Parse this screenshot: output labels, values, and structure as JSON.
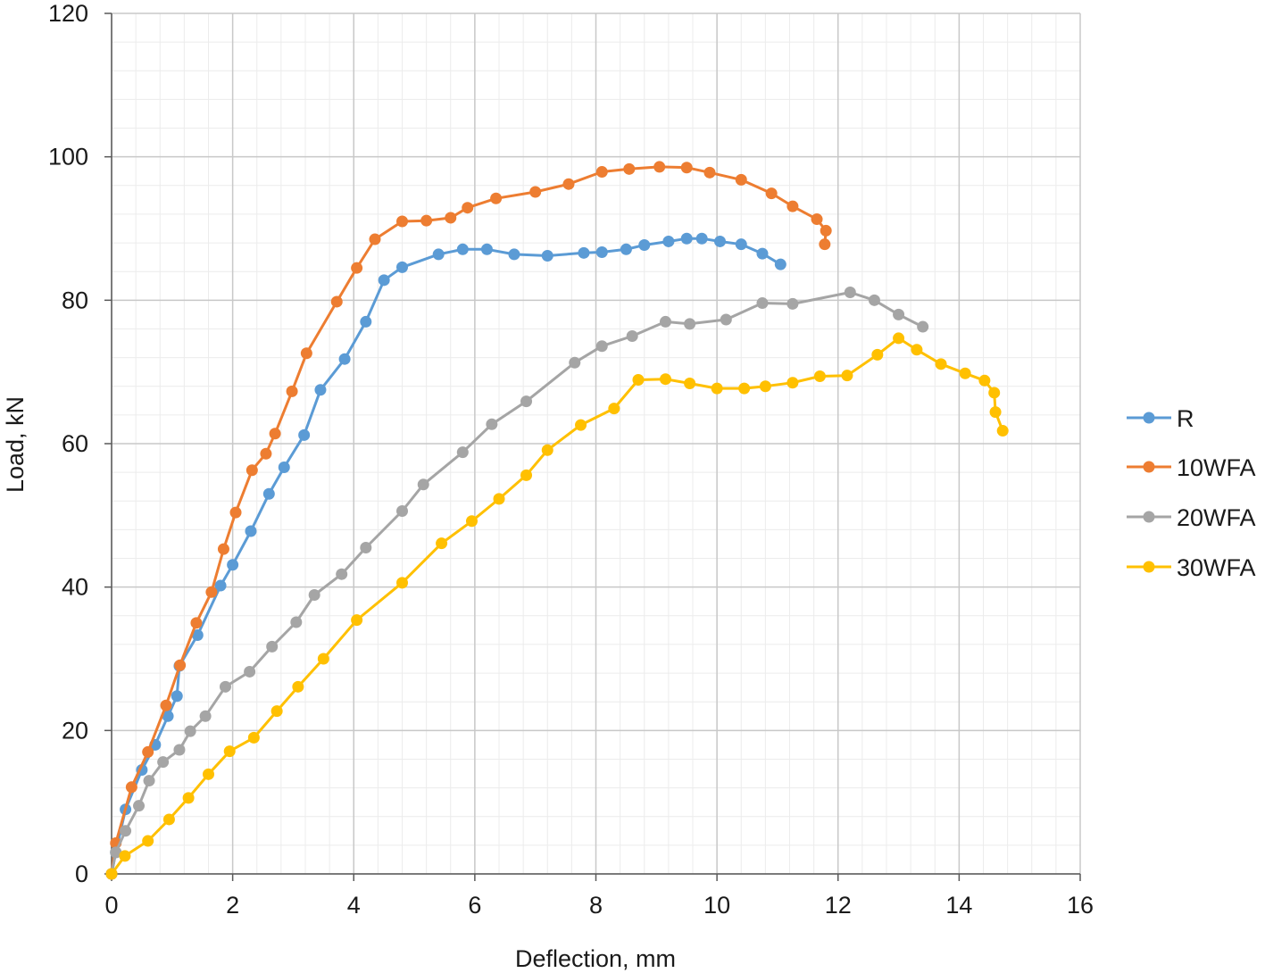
{
  "chart_data": {
    "type": "line",
    "xlabel": "Deflection, mm",
    "ylabel": "Load, kN",
    "xlim": [
      0,
      16
    ],
    "ylim": [
      0,
      120
    ],
    "x_ticks": [
      0,
      2,
      4,
      6,
      8,
      10,
      12,
      14,
      16
    ],
    "y_ticks": [
      0,
      20,
      40,
      60,
      80,
      100,
      120
    ],
    "grid": true,
    "legend_position": "right",
    "series": [
      {
        "name": "R",
        "color": "#5B9BD5",
        "x": [
          0,
          0.07,
          0.23,
          0.5,
          0.72,
          0.93,
          1.08,
          1.12,
          1.42,
          1.8,
          2.0,
          2.3,
          2.6,
          2.85,
          3.18,
          3.45,
          3.85,
          4.2,
          4.5,
          4.8,
          5.4,
          5.8,
          6.2,
          6.65,
          7.2,
          7.8,
          8.1,
          8.5,
          8.8,
          9.2,
          9.5,
          9.75,
          10.05,
          10.4,
          10.75,
          11.05
        ],
        "y": [
          0,
          3,
          9,
          14.5,
          18,
          22,
          24.8,
          29,
          33.3,
          40.2,
          43.1,
          47.8,
          53,
          56.7,
          61.2,
          67.5,
          71.8,
          77,
          82.8,
          84.6,
          86.4,
          87.1,
          87.1,
          86.4,
          86.2,
          86.6,
          86.7,
          87.1,
          87.7,
          88.2,
          88.6,
          88.6,
          88.2,
          87.8,
          86.5,
          85
        ]
      },
      {
        "name": "10WFA",
        "color": "#ED7D31",
        "x": [
          0,
          0.07,
          0.33,
          0.6,
          0.9,
          1.13,
          1.4,
          1.65,
          1.85,
          2.05,
          2.32,
          2.55,
          2.7,
          2.98,
          3.22,
          3.72,
          4.05,
          4.35,
          4.8,
          5.2,
          5.6,
          5.88,
          6.35,
          7.0,
          7.55,
          8.1,
          8.55,
          9.05,
          9.5,
          9.88,
          10.4,
          10.9,
          11.25,
          11.65,
          11.8,
          11.78
        ],
        "y": [
          0,
          4.3,
          12.1,
          17,
          23.5,
          29.1,
          35,
          39.3,
          45.3,
          50.4,
          56.3,
          58.6,
          61.4,
          67.3,
          72.6,
          79.8,
          84.5,
          88.5,
          91,
          91.1,
          91.5,
          92.9,
          94.2,
          95.1,
          96.2,
          97.9,
          98.3,
          98.6,
          98.5,
          97.8,
          96.8,
          94.9,
          93.1,
          91.3,
          89.7,
          87.8
        ]
      },
      {
        "name": "20WFA",
        "color": "#A5A5A5",
        "x": [
          0,
          0.07,
          0.23,
          0.45,
          0.62,
          0.85,
          1.12,
          1.3,
          1.55,
          1.88,
          2.28,
          2.65,
          3.05,
          3.35,
          3.8,
          4.2,
          4.8,
          5.15,
          5.8,
          6.28,
          6.85,
          7.65,
          8.1,
          8.6,
          9.15,
          9.55,
          10.15,
          10.75,
          11.25,
          12.2,
          12.6,
          13.0,
          13.4
        ],
        "y": [
          0,
          3,
          6,
          9.5,
          13,
          15.6,
          17.3,
          19.9,
          22,
          26.1,
          28.2,
          31.7,
          35.1,
          38.9,
          41.8,
          45.5,
          50.6,
          54.3,
          58.8,
          62.7,
          65.9,
          71.3,
          73.6,
          75,
          77,
          76.7,
          77.3,
          79.6,
          79.5,
          81.1,
          80,
          78,
          76.3
        ]
      },
      {
        "name": "30WFA",
        "color": "#FFC000",
        "x": [
          0,
          0.22,
          0.6,
          0.95,
          1.27,
          1.6,
          1.95,
          2.35,
          2.73,
          3.08,
          3.5,
          4.05,
          4.8,
          5.45,
          5.95,
          6.4,
          6.85,
          7.2,
          7.75,
          8.3,
          8.7,
          9.15,
          9.55,
          10.0,
          10.45,
          10.8,
          11.25,
          11.7,
          12.15,
          12.65,
          13.0,
          13.3,
          13.7,
          14.1,
          14.42,
          14.58,
          14.6,
          14.72
        ],
        "y": [
          0,
          2.5,
          4.6,
          7.6,
          10.6,
          13.9,
          17.1,
          19,
          22.7,
          26.1,
          30,
          35.4,
          40.6,
          46.1,
          49.2,
          52.3,
          55.6,
          59.1,
          62.6,
          64.9,
          68.9,
          69,
          68.4,
          67.7,
          67.7,
          68,
          68.5,
          69.4,
          69.5,
          72.4,
          74.7,
          73.1,
          71.1,
          69.8,
          68.8,
          67.1,
          64.4,
          61.8
        ]
      }
    ]
  }
}
